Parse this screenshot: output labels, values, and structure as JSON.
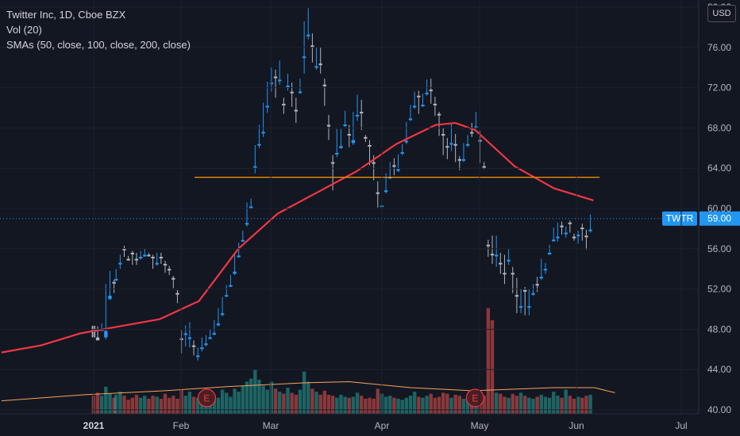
{
  "legend": {
    "symbol_line": "Twitter Inc, 1D, Cboe BZX",
    "vol_line": "Vol (20)",
    "sma_line": "SMAs (50, close, 100, close, 200, close)"
  },
  "currency_button": "USD",
  "last_price": {
    "ticker": "TWTR",
    "value": "59.00"
  },
  "earnings_marker": "E",
  "colors": {
    "background": "#131722",
    "up": "#26a69a",
    "down": "#ef5350",
    "candle_up": "#2196f3",
    "candle_down": "#b2b5be",
    "sma": "#f23645",
    "horizontal_line": "#ff9800",
    "volume_ma": "#f7a35c",
    "price_tag": "#2196f3"
  },
  "chart_data": {
    "type": "candlestick",
    "y_axis": {
      "ticks": [
        "40.00",
        "44.00",
        "48.00",
        "52.00",
        "56.00",
        "60.00",
        "64.00",
        "68.00",
        "72.00",
        "76.00",
        "80.00"
      ],
      "range": [
        40,
        80
      ]
    },
    "x_axis": {
      "ticks": [
        {
          "label": "2021",
          "bold": true,
          "date": "2021-01-04"
        },
        {
          "label": "Feb",
          "date": "2021-02-01"
        },
        {
          "label": "Mar",
          "date": "2021-03-01"
        },
        {
          "label": "Apr",
          "date": "2021-04-01"
        },
        {
          "label": "May",
          "date": "2021-05-03"
        },
        {
          "label": "Jun",
          "date": "2021-06-01"
        },
        {
          "label": "Jul",
          "date": "2021-07-01"
        }
      ]
    },
    "horizontal_line": {
      "price": 63.1,
      "from": "2021-02-08",
      "to": "2021-06-15"
    },
    "sma_50": [
      [
        0,
        45.7
      ],
      [
        10,
        46.4
      ],
      [
        20,
        47.6
      ],
      [
        30,
        48.3
      ],
      [
        40,
        49.0
      ],
      [
        50,
        50.8
      ],
      [
        60,
        56.0
      ],
      [
        70,
        59.5
      ],
      [
        80,
        61.6
      ],
      [
        90,
        63.7
      ],
      [
        100,
        66.4
      ],
      [
        110,
        68.3
      ],
      [
        115,
        68.5
      ],
      [
        120,
        67.8
      ],
      [
        130,
        64.2
      ],
      [
        140,
        62.0
      ],
      [
        150,
        60.8
      ]
    ],
    "volume_ma": [
      [
        0,
        40.9
      ],
      [
        20,
        41.5
      ],
      [
        40,
        41.9
      ],
      [
        55,
        42.3
      ],
      [
        75,
        42.7
      ],
      [
        85,
        42.8
      ],
      [
        100,
        42.2
      ],
      [
        115,
        41.9
      ],
      [
        135,
        42.2
      ],
      [
        145,
        42.2
      ],
      [
        150,
        41.7
      ]
    ],
    "earnings_dates": [
      52,
      120
    ],
    "candles": [
      [
        45,
        47.2,
        48,
        48.4,
        "v",
        41.4
      ],
      [
        47,
        46.9,
        48.3,
        47,
        "v",
        41.7
      ],
      [
        49,
        48,
        48.6,
        47.9,
        "^",
        41.4
      ],
      [
        51,
        47.2,
        52.5,
        47,
        "^",
        42.3
      ],
      [
        53,
        51,
        53.8,
        50.9,
        "^",
        41.6
      ],
      [
        55,
        52.7,
        52.9,
        51.6,
        "v",
        41.2
      ],
      [
        56,
        53,
        54,
        52.8,
        "^",
        41.5
      ],
      [
        58,
        54.6,
        55.4,
        54,
        "^",
        41.8
      ],
      [
        60,
        56,
        56.3,
        55.2,
        "v",
        41.4
      ],
      [
        62,
        55,
        55.3,
        54.8,
        "v",
        41.0
      ],
      [
        64,
        55.6,
        55.8,
        54.4,
        "v",
        41.2
      ],
      [
        66,
        55,
        55.6,
        54.4,
        "v",
        41.5
      ],
      [
        68,
        55.2,
        55.8,
        54.9,
        "^",
        41.2
      ],
      [
        70,
        55.4,
        56,
        55.2,
        "^",
        41.4
      ],
      [
        72,
        55.4,
        55.6,
        55.3,
        "v",
        41.1
      ],
      [
        74,
        55.2,
        55.4,
        54,
        "v",
        41.4
      ],
      [
        76,
        54.6,
        55.6,
        54.3,
        "^",
        41.3
      ],
      [
        78,
        55.2,
        55.6,
        54.5,
        "v",
        41.1
      ],
      [
        80,
        54.5,
        54.8,
        53.6,
        "v",
        41.6
      ],
      [
        82,
        54,
        54.3,
        53.4,
        "v",
        41.2
      ],
      [
        84,
        53.1,
        53.3,
        52.1,
        "v",
        41.4
      ],
      [
        86,
        51.6,
        51.9,
        50.6,
        "v",
        41.1
      ],
      [
        88,
        47.1,
        47.9,
        45.6,
        "v",
        42.0
      ],
      [
        90,
        47.6,
        48.4,
        46.3,
        "^",
        41.4
      ],
      [
        92,
        47.2,
        48.7,
        46.2,
        "^",
        41.8
      ],
      [
        94,
        46.4,
        46.9,
        45.4,
        "v",
        41.3
      ],
      [
        96,
        45.4,
        46.2,
        44.9,
        "^",
        41.2
      ],
      [
        98,
        46.2,
        47.2,
        45.8,
        "^",
        41.0
      ],
      [
        100,
        46.6,
        47.4,
        46.3,
        "^",
        41.2
      ],
      [
        102,
        47.2,
        48,
        47,
        "^",
        41.0
      ],
      [
        104,
        47.6,
        48.9,
        47.4,
        "^",
        41.4
      ],
      [
        106,
        48.4,
        50.1,
        48.3,
        "^",
        41.2
      ],
      [
        108,
        49.5,
        51.2,
        49.3,
        "^",
        42.0
      ],
      [
        110,
        51.4,
        52.4,
        51.2,
        "^",
        41.7
      ],
      [
        112,
        52.3,
        53.4,
        52.2,
        "^",
        41.3
      ],
      [
        114,
        53.5,
        55.6,
        53.4,
        "^",
        42.1
      ],
      [
        116,
        55.3,
        56.6,
        55.1,
        "^",
        41.8
      ],
      [
        118,
        56.8,
        57.8,
        56.7,
        "^",
        42.4
      ],
      [
        120,
        58.4,
        60.6,
        58.2,
        "^",
        42.8
      ],
      [
        122,
        60.2,
        61,
        60,
        "^",
        43.1
      ],
      [
        124,
        64.2,
        66.3,
        63.5,
        "^",
        44.0
      ],
      [
        126,
        66.4,
        68.3,
        66,
        "^",
        43.0
      ],
      [
        128,
        67.5,
        70.5,
        67.1,
        "^",
        42.4
      ],
      [
        130,
        70.2,
        72.6,
        69.5,
        "^",
        42.0
      ],
      [
        132,
        72.5,
        74,
        71.6,
        "^",
        42.8
      ],
      [
        134,
        73.1,
        73.8,
        71,
        "v",
        42.1
      ],
      [
        136,
        72.8,
        74.7,
        72.3,
        "^",
        41.8
      ],
      [
        138,
        70.4,
        71,
        69.4,
        "v",
        41.6
      ],
      [
        140,
        72.2,
        73.4,
        71.7,
        "^",
        42.2
      ],
      [
        142,
        71.6,
        72.5,
        70.1,
        "v",
        41.7
      ],
      [
        144,
        69.8,
        71,
        68.5,
        "v",
        41.5
      ],
      [
        146,
        71.6,
        72.9,
        71.4,
        "^",
        42.0
      ],
      [
        148,
        75.1,
        78.6,
        73.4,
        "^",
        43.8
      ],
      [
        150,
        77.2,
        79.9,
        76.8,
        "^",
        42.8
      ],
      [
        152,
        76.2,
        77.4,
        74.5,
        "v",
        42.1
      ],
      [
        154,
        74.1,
        76,
        73.8,
        "^",
        41.8
      ],
      [
        156,
        74.4,
        76,
        73.4,
        "v",
        41.5
      ],
      [
        158,
        72.3,
        72.9,
        70.2,
        "v",
        41.9
      ],
      [
        160,
        68.3,
        69.3,
        66.8,
        "v",
        41.5
      ],
      [
        162,
        64.6,
        65.3,
        61.8,
        "v",
        41.4
      ],
      [
        164,
        65.5,
        67.9,
        65.1,
        "^",
        41.2
      ],
      [
        166,
        66,
        67.9,
        65.9,
        "^",
        41.5
      ],
      [
        168,
        68.3,
        69.7,
        68.1,
        "^",
        41.3
      ],
      [
        170,
        67.4,
        68.3,
        66.1,
        "v",
        41.2
      ],
      [
        172,
        66.5,
        69.6,
        66.3,
        "^",
        41.3
      ],
      [
        174,
        69.3,
        71.3,
        68.7,
        "^",
        41.7
      ],
      [
        176,
        69.6,
        70.8,
        67.8,
        "v",
        41.4
      ],
      [
        178,
        67.1,
        67.3,
        66.6,
        "v",
        41.1
      ],
      [
        180,
        66.3,
        66.8,
        64.3,
        "v",
        41.2
      ],
      [
        182,
        64.6,
        65.3,
        62.8,
        "v",
        41.1
      ],
      [
        184,
        61.6,
        62.7,
        60.1,
        "v",
        42.1
      ],
      [
        186,
        60.3,
        61.9,
        59.5,
        "^",
        41.6
      ],
      [
        188,
        61.8,
        63.5,
        61.5,
        "^",
        41.3
      ],
      [
        190,
        63.1,
        64.6,
        62.9,
        "^",
        41.4
      ],
      [
        192,
        64.3,
        65,
        63.3,
        "v",
        41.2
      ],
      [
        194,
        63.9,
        65.4,
        63.6,
        "^",
        41.1
      ],
      [
        196,
        65.6,
        66.4,
        65.3,
        "^",
        41.0
      ],
      [
        198,
        66.6,
        68.6,
        66.4,
        "^",
        41.2
      ],
      [
        200,
        68.9,
        70.3,
        68.7,
        "^",
        41.4
      ],
      [
        202,
        70.2,
        71.6,
        69.9,
        "^",
        41.8
      ],
      [
        204,
        71.2,
        71.7,
        69.4,
        "v",
        41.3
      ],
      [
        206,
        70.3,
        71.4,
        70.1,
        "^",
        41.2
      ],
      [
        208,
        71.5,
        72.8,
        71.2,
        "^",
        41.4
      ],
      [
        210,
        71.8,
        72.9,
        70.4,
        "v",
        41.6
      ],
      [
        212,
        70.4,
        71.1,
        69.2,
        "v",
        41.2
      ],
      [
        214,
        69.4,
        69.6,
        67.2,
        "v",
        41.3
      ],
      [
        216,
        67.4,
        68,
        65.3,
        "v",
        41.7
      ],
      [
        218,
        66.2,
        67,
        64.9,
        "v",
        41.6
      ],
      [
        220,
        66.5,
        68.4,
        65.7,
        "^",
        41.2
      ],
      [
        222,
        66.4,
        67.4,
        64.6,
        "v",
        41.5
      ],
      [
        224,
        64.9,
        65.2,
        63.8,
        "v",
        41.4
      ],
      [
        226,
        64.9,
        66.5,
        64.6,
        "^",
        41.1
      ],
      [
        228,
        66.4,
        67.3,
        66.1,
        "^",
        41.0
      ],
      [
        230,
        67.6,
        68.5,
        67.1,
        "v",
        41.3
      ],
      [
        232,
        68.1,
        69.6,
        67.9,
        "^",
        41.2
      ],
      [
        234,
        66.8,
        67.7,
        64.5,
        "v",
        41.1
      ],
      [
        236,
        64.2,
        64.6,
        63.9,
        "v",
        41.4
      ],
      [
        238,
        56.4,
        56.9,
        55.2,
        "v",
        50.1
      ],
      [
        240,
        55.5,
        57.3,
        54.5,
        "v",
        48.9
      ],
      [
        242,
        55.4,
        57.3,
        54.2,
        "^",
        41.7
      ],
      [
        244,
        54.6,
        55.6,
        53.5,
        "v",
        41.6
      ],
      [
        246,
        53.6,
        55.4,
        52.5,
        "v",
        41.3
      ],
      [
        248,
        54.9,
        56,
        54.4,
        "^",
        41.2
      ],
      [
        250,
        53.6,
        54.2,
        51.6,
        "v",
        41.6
      ],
      [
        252,
        51.4,
        53.1,
        49.6,
        "v",
        41.4
      ],
      [
        254,
        50.3,
        52,
        49.6,
        "^",
        41.7
      ],
      [
        256,
        51.9,
        52.2,
        49.4,
        "v",
        41.4
      ],
      [
        258,
        50.3,
        52,
        49.4,
        "^",
        41.2
      ],
      [
        260,
        51.6,
        52.5,
        51.3,
        "^",
        41.1
      ],
      [
        262,
        52.5,
        53.2,
        51.7,
        "v",
        41.3
      ],
      [
        264,
        53.2,
        55,
        52.9,
        "^",
        41.5
      ],
      [
        266,
        54,
        54.6,
        53.5,
        "^",
        41.3
      ],
      [
        268,
        55.6,
        56.4,
        55.4,
        "^",
        41.2
      ],
      [
        270,
        56.8,
        58.1,
        56.7,
        "^",
        41.8
      ],
      [
        272,
        57.2,
        58.6,
        56.7,
        "^",
        41.4
      ],
      [
        274,
        58.3,
        58.7,
        57.4,
        "v",
        41.2
      ],
      [
        276,
        57.6,
        58.2,
        57.1,
        "^",
        42.0
      ],
      [
        278,
        58.6,
        58.8,
        57.6,
        "v",
        41.4
      ],
      [
        280,
        57.2,
        57.5,
        56.8,
        "v",
        41.1
      ],
      [
        282,
        57.4,
        57.8,
        56.5,
        "^",
        41.3
      ],
      [
        284,
        58.1,
        58.5,
        56.8,
        "v",
        41.2
      ],
      [
        286,
        57.3,
        57.9,
        55.9,
        "v",
        41.4
      ],
      [
        288,
        57.9,
        59.4,
        57.6,
        "^",
        41.5
      ]
    ]
  }
}
